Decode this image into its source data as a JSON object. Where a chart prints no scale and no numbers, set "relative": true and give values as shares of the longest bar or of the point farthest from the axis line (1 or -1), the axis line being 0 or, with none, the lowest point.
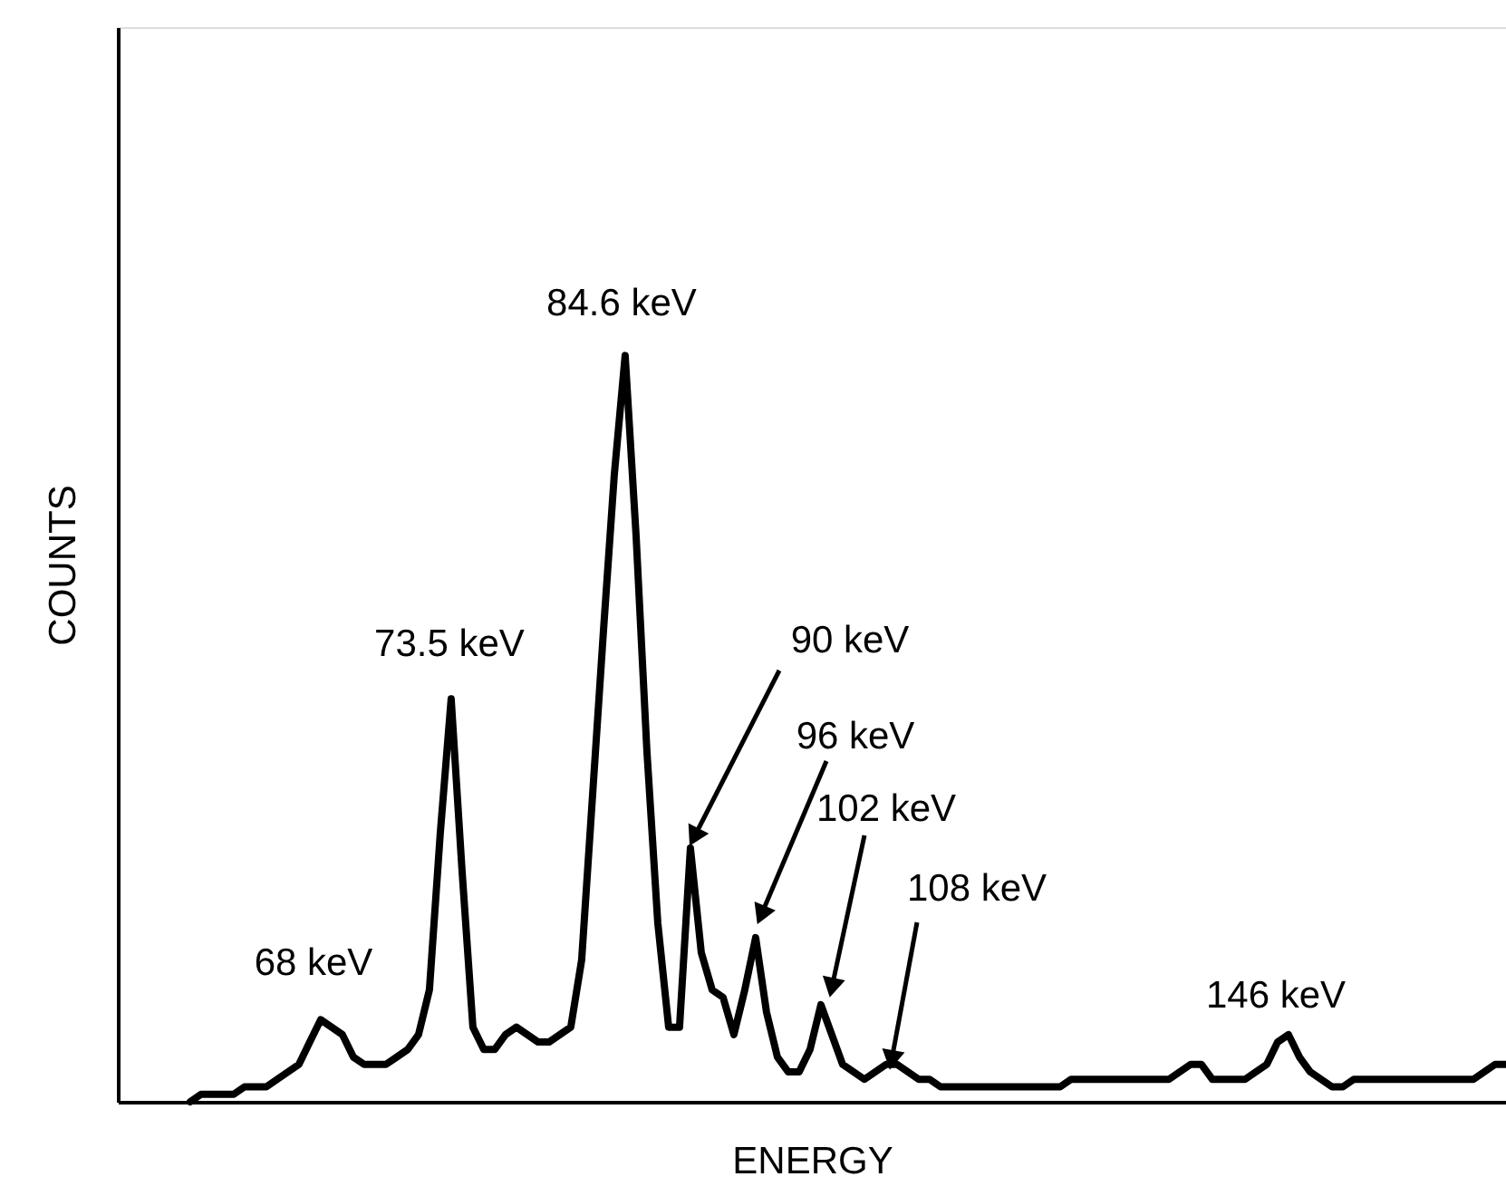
{
  "chart_data": {
    "type": "line",
    "relative": true,
    "xlabel": "ENERGY",
    "ylabel": "COUNTS",
    "tick_labels": false,
    "grid": false,
    "marker": "none",
    "line_style": "solid",
    "categories": [
      null,
      null,
      null,
      null,
      null,
      null,
      null,
      null,
      null,
      null,
      null,
      null,
      null,
      null,
      null,
      null,
      null,
      null,
      null,
      null,
      null,
      null,
      null,
      null,
      null,
      null,
      null,
      null,
      null,
      null,
      null,
      null,
      null,
      null,
      null,
      null,
      null,
      null,
      null,
      null,
      null,
      null,
      null,
      null,
      null,
      null,
      null,
      null,
      null,
      null,
      null,
      null,
      null,
      null,
      null,
      null,
      null,
      null,
      null,
      null,
      null,
      null,
      null,
      null,
      null,
      null,
      null,
      null,
      null,
      null,
      null,
      null,
      null,
      null,
      null,
      null,
      null,
      null,
      null,
      null,
      null,
      null,
      null,
      null,
      null,
      null,
      null,
      null,
      null,
      null,
      null,
      null,
      null,
      null,
      null,
      null,
      null,
      null,
      null,
      null,
      null,
      null,
      null,
      null,
      null,
      null,
      null,
      null,
      null,
      null,
      null,
      null,
      null,
      null,
      null,
      null,
      null,
      null,
      null,
      null,
      null,
      null
    ],
    "series": [
      {
        "color": "#000000",
        "values": [
          0.0,
          0.01,
          0.01,
          0.01,
          0.01,
          0.02,
          0.02,
          0.02,
          0.03,
          0.04,
          0.05,
          0.08,
          0.11,
          0.1,
          0.09,
          0.06,
          0.05,
          0.05,
          0.05,
          0.06,
          0.07,
          0.09,
          0.15,
          0.36,
          0.54,
          0.31,
          0.1,
          0.07,
          0.07,
          0.09,
          0.1,
          0.09,
          0.08,
          0.08,
          0.09,
          0.1,
          0.19,
          0.41,
          0.63,
          0.84,
          1.0,
          0.76,
          0.47,
          0.24,
          0.1,
          0.1,
          0.34,
          0.2,
          0.15,
          0.14,
          0.09,
          0.15,
          0.22,
          0.12,
          0.06,
          0.04,
          0.04,
          0.07,
          0.13,
          0.09,
          0.05,
          0.04,
          0.03,
          0.04,
          0.05,
          0.05,
          0.04,
          0.03,
          0.03,
          0.02,
          0.02,
          0.02,
          0.02,
          0.02,
          0.02,
          0.02,
          0.02,
          0.02,
          0.02,
          0.02,
          0.02,
          0.03,
          0.03,
          0.03,
          0.03,
          0.03,
          0.03,
          0.03,
          0.03,
          0.03,
          0.03,
          0.04,
          0.05,
          0.05,
          0.03,
          0.03,
          0.03,
          0.03,
          0.04,
          0.05,
          0.08,
          0.09,
          0.06,
          0.04,
          0.03,
          0.02,
          0.02,
          0.03,
          0.03,
          0.03,
          0.03,
          0.03,
          0.03,
          0.03,
          0.03,
          0.03,
          0.03,
          0.03,
          0.03,
          0.04,
          0.05,
          0.05
        ]
      }
    ],
    "annotations": [
      "68 keV",
      "73.5 keV",
      "84.6 keV",
      "90 keV",
      "96 keV",
      "102 keV",
      "108 keV",
      "146 keV"
    ]
  }
}
